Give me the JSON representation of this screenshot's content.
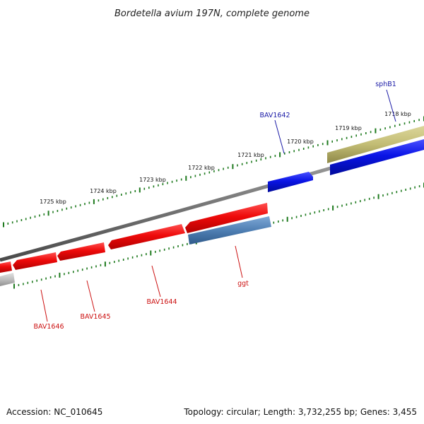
{
  "title": "Bordetella avium 197N, complete genome",
  "footer": {
    "accession": "Accession: NC_010645",
    "topology": "Topology: circular; Length: 3,732,255 bp; Genes: 3,455"
  },
  "colors": {
    "backbone": "#7a7a7a",
    "ticks": "#1e7a1e",
    "forward_gene": "#0a14e6",
    "reverse_gene": "#e60a0a",
    "rna_like": "#c2bc74",
    "steel_blue": "#4f7fb3",
    "grey_gene": "#bdbdbd",
    "label_blue": "#1a1aa6",
    "label_red": "#cc1111"
  },
  "tick_labels": [
    {
      "label": "1718 kbp"
    },
    {
      "label": "1719 kbp"
    },
    {
      "label": "1720 kbp"
    },
    {
      "label": "1721 kbp"
    },
    {
      "label": "1722 kbp"
    },
    {
      "label": "1723 kbp"
    },
    {
      "label": "1724 kbp"
    },
    {
      "label": "1725 kbp"
    }
  ],
  "gene_labels": [
    {
      "name": "sphB1",
      "strand": "forward"
    },
    {
      "name": "BAV1642",
      "strand": "forward"
    },
    {
      "name": "ggt",
      "strand": "reverse"
    },
    {
      "name": "BAV1644",
      "strand": "reverse"
    },
    {
      "name": "BAV1645",
      "strand": "reverse"
    },
    {
      "name": "BAV1646",
      "strand": "reverse"
    }
  ]
}
